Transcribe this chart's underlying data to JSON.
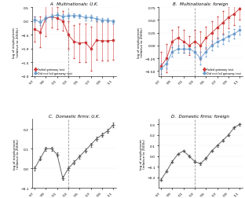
{
  "years": [
    1997,
    1998,
    1999,
    2000,
    2001,
    2002,
    2003,
    2004,
    2005,
    2006,
    2007,
    2008,
    2009,
    2010,
    2011
  ],
  "vline_year": 2003,
  "panel_A": {
    "title": "A.  Multinationals: U.K.",
    "ylabel": "log of employment\n(relative to 2000s)",
    "ylim": [
      -2.0,
      0.5
    ],
    "yticks": [
      -2.0,
      -1.5,
      -1.0,
      -0.5,
      0.0,
      0.5
    ],
    "failed": [
      -0.3,
      -0.4,
      0.1,
      0.15,
      0.1,
      0.0,
      -0.5,
      -0.75,
      -0.8,
      -0.78,
      -1.0,
      -0.7,
      -0.72,
      -0.72,
      -0.7
    ],
    "failed_err": [
      0.45,
      0.55,
      0.65,
      0.4,
      0.4,
      0.35,
      0.5,
      0.6,
      0.7,
      0.7,
      0.8,
      0.7,
      0.7,
      0.7,
      0.7
    ],
    "notfailed": [
      0.05,
      -0.05,
      0.1,
      0.17,
      0.22,
      0.17,
      0.18,
      0.2,
      0.18,
      0.13,
      0.13,
      0.08,
      0.03,
      0.03,
      -0.02
    ],
    "notfailed_err": [
      0.1,
      0.09,
      0.1,
      0.08,
      0.08,
      0.08,
      0.08,
      0.08,
      0.08,
      0.1,
      0.1,
      0.08,
      0.08,
      0.08,
      0.08
    ]
  },
  "panel_B": {
    "title": "B.  Multinationals: foreign",
    "ylabel": "log of employment\n(relative to 2000s)",
    "ylim": [
      -0.6,
      0.75
    ],
    "yticks": [
      -0.5,
      -0.25,
      0.0,
      0.25,
      0.5,
      0.75
    ],
    "failed": [
      -0.4,
      -0.25,
      0.08,
      0.15,
      0.08,
      0.0,
      0.08,
      0.0,
      0.15,
      0.25,
      0.35,
      0.45,
      0.55,
      0.62,
      0.72
    ],
    "failed_err": [
      0.28,
      0.28,
      0.22,
      0.22,
      0.22,
      0.18,
      0.22,
      0.28,
      0.22,
      0.22,
      0.22,
      0.22,
      0.22,
      0.22,
      0.22
    ],
    "notfailed": [
      -0.45,
      -0.35,
      -0.12,
      -0.07,
      -0.07,
      -0.07,
      -0.12,
      -0.25,
      -0.12,
      0.0,
      0.07,
      0.12,
      0.18,
      0.23,
      0.3
    ],
    "notfailed_err": [
      0.1,
      0.1,
      0.09,
      0.07,
      0.07,
      0.07,
      0.09,
      0.12,
      0.09,
      0.09,
      0.09,
      0.09,
      0.09,
      0.09,
      0.09
    ]
  },
  "panel_C": {
    "title": "C.  Domestic firms: U.K.",
    "ylabel": "log of employment\n(relative to 2000s)",
    "ylim": [
      -0.1,
      0.25
    ],
    "yticks": [
      -0.1,
      0.0,
      0.1,
      0.2
    ],
    "single": [
      0.0,
      0.05,
      0.1,
      0.1,
      0.07,
      -0.05,
      0.0,
      0.03,
      0.06,
      0.09,
      0.12,
      0.15,
      0.17,
      0.19,
      0.22
    ],
    "single_err": [
      0.01,
      0.01,
      0.01,
      0.01,
      0.01,
      0.01,
      0.01,
      0.01,
      0.01,
      0.01,
      0.01,
      0.01,
      0.01,
      0.01,
      0.01
    ]
  },
  "panel_D": {
    "title": "D.  Domestic firms: foreign",
    "ylabel": "log of employment\n(relative to 2000s)",
    "ylim": [
      -0.3,
      0.35
    ],
    "yticks": [
      -0.2,
      -0.1,
      0.0,
      0.1,
      0.2,
      0.3
    ],
    "single": [
      -0.22,
      -0.14,
      -0.05,
      0.02,
      0.05,
      0.0,
      -0.05,
      -0.07,
      -0.02,
      0.05,
      0.1,
      0.15,
      0.2,
      0.27,
      0.3
    ],
    "single_err": [
      0.01,
      0.01,
      0.01,
      0.01,
      0.01,
      0.01,
      0.01,
      0.01,
      0.01,
      0.01,
      0.01,
      0.01,
      0.01,
      0.01,
      0.01
    ]
  },
  "failed_color": "#cc3333",
  "notfailed_color": "#6699cc",
  "single_color": "#555555",
  "legend_failed": "Failed gateway test",
  "legend_notfailed": "Did not fail gateway test",
  "background_color": "#ffffff",
  "dashed_line_color": "#999999",
  "xtick_years": [
    1997,
    1999,
    2001,
    2003,
    2005,
    2007,
    2009,
    2011
  ],
  "xtick_labels": [
    "'97",
    "'99",
    "'01",
    "'03",
    "'05",
    "'07",
    "'09",
    "'11"
  ]
}
